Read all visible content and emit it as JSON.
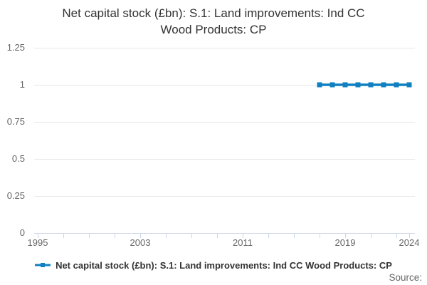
{
  "title": {
    "line1": "Net capital stock (£bn): S.1: Land improvements: Ind CC",
    "line2": "Wood Products: CP"
  },
  "chart_data": {
    "type": "line",
    "title": "Net capital stock (£bn): S.1: Land improvements: Ind CC Wood Products: CP",
    "x": [
      2017,
      2018,
      2019,
      2020,
      2021,
      2022,
      2023,
      2024
    ],
    "series": [
      {
        "name": "Net capital stock (£bn): S.1: Land improvements: Ind CC Wood Products: CP",
        "values": [
          1,
          1,
          1,
          1,
          1,
          1,
          1,
          1
        ],
        "marker": "square"
      }
    ],
    "xlabel": "",
    "ylabel": "",
    "xlim": [
      1995,
      2024
    ],
    "ylim": [
      0,
      1.25
    ],
    "y_ticks": [
      0,
      0.25,
      0.5,
      0.75,
      1,
      1.25
    ],
    "y_tick_labels": [
      "0",
      "0.25",
      "0.5",
      "0.75",
      "1",
      "1.25"
    ],
    "x_tick_years": [
      1995,
      1997,
      1999,
      2001,
      2003,
      2005,
      2007,
      2009,
      2011,
      2013,
      2015,
      2017,
      2019,
      2021,
      2023,
      2024
    ],
    "x_tick_labels": [
      {
        "year": 1995,
        "label": "1995"
      },
      {
        "year": 2003,
        "label": "2003"
      },
      {
        "year": 2011,
        "label": "2011"
      },
      {
        "year": 2019,
        "label": "2019"
      },
      {
        "year": 2024,
        "label": "2024"
      }
    ],
    "grid": true,
    "legend_position": "bottom"
  },
  "legend": {
    "label": "Net capital stock (£bn): S.1: Land improvements: Ind CC Wood Products: CP"
  },
  "footer": {
    "source_label": "Source:"
  },
  "colors": {
    "series": "#1080c0",
    "grid": "#e6e6e6",
    "axis": "#ccd6eb",
    "tick_label": "#666666",
    "title": "#333333",
    "legend_text": "#333333",
    "background": "#ffffff"
  }
}
